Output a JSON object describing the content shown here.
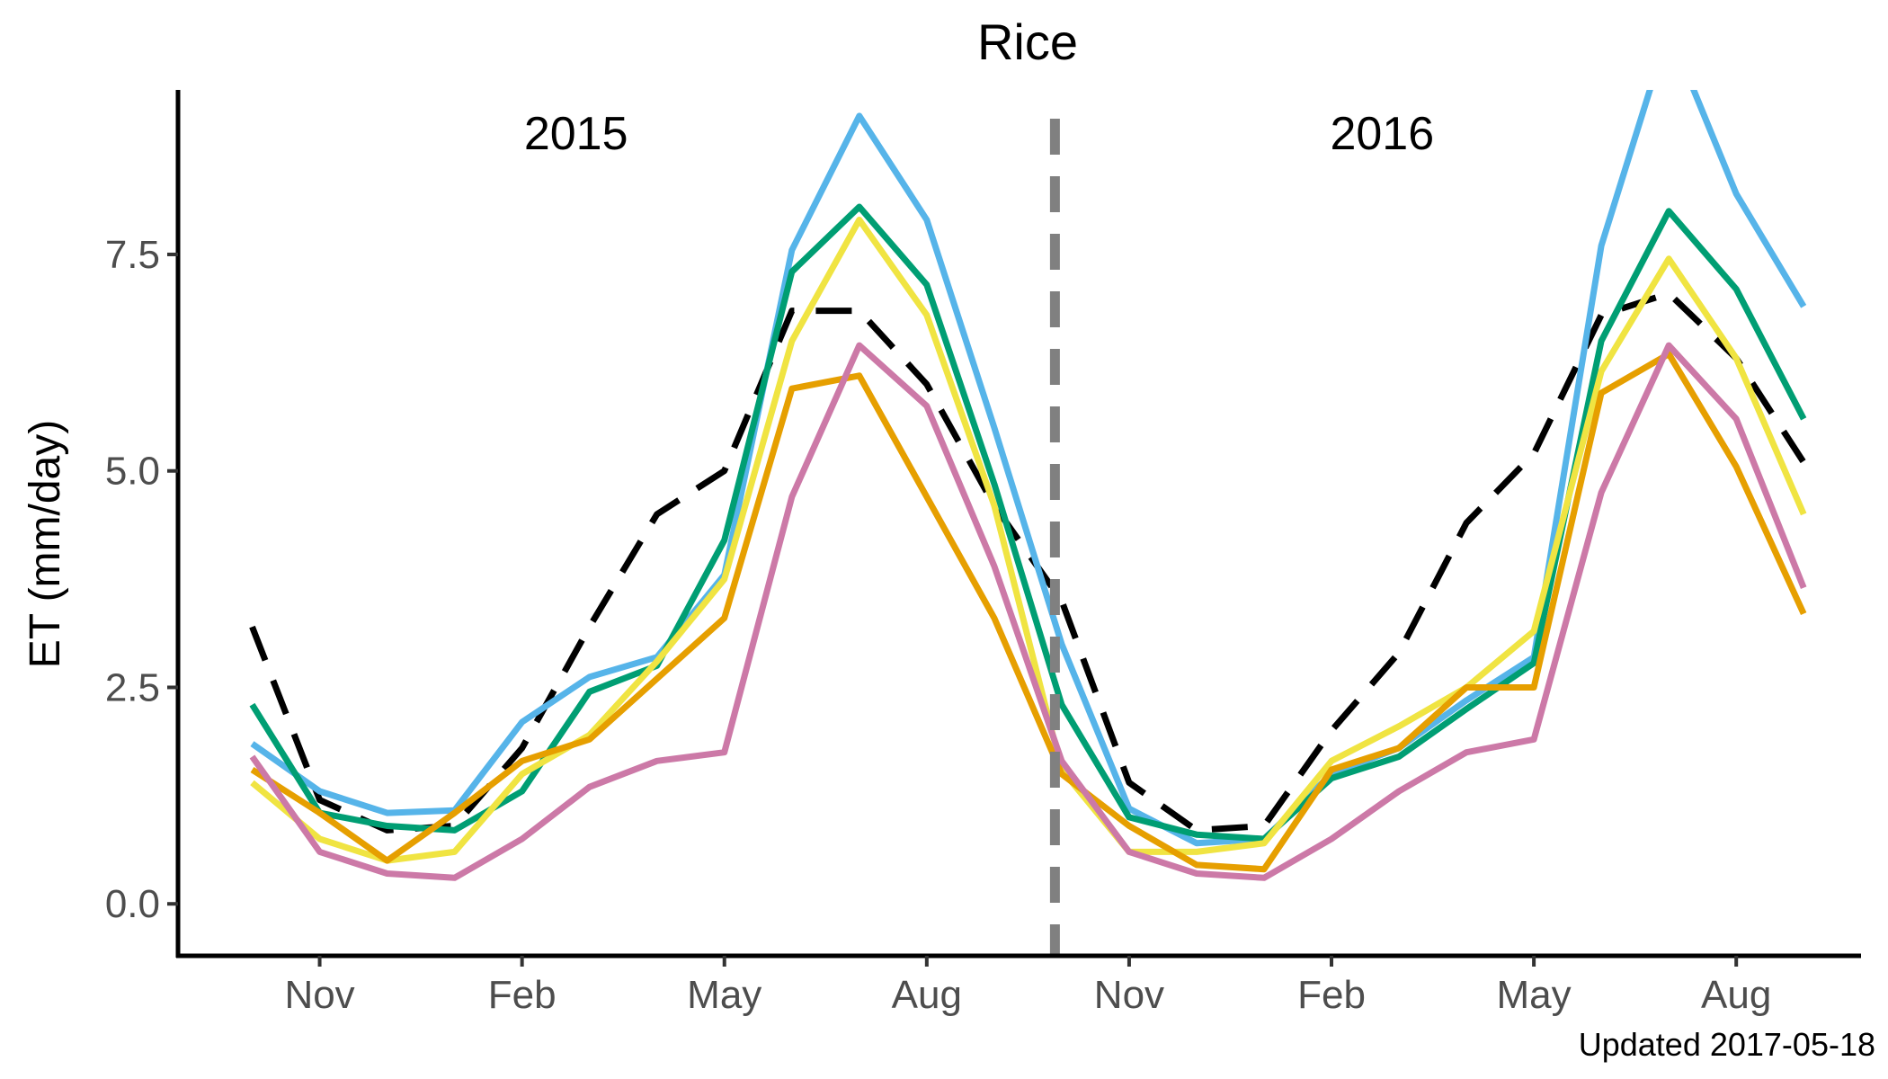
{
  "chart_data": {
    "type": "line",
    "title": "Rice",
    "xlabel": "",
    "ylabel": "ET (mm/day)",
    "ylim": [
      -0.6,
      9.4
    ],
    "yticks": [
      0.0,
      2.5,
      5.0,
      7.5
    ],
    "ytick_labels": [
      "0.0",
      "2.5",
      "5.0",
      "7.5"
    ],
    "xlim": [
      -1.1,
      23.85
    ],
    "xticks": [
      1,
      4,
      7,
      10,
      13,
      16,
      19,
      22
    ],
    "xtick_labels": [
      "Nov",
      "Feb",
      "May",
      "Aug",
      "Nov",
      "Feb",
      "May",
      "Aug"
    ],
    "x": [
      0,
      1,
      2,
      3,
      4,
      5,
      6,
      7,
      8,
      9,
      10,
      11,
      12,
      13,
      14,
      15,
      16,
      17,
      18,
      19,
      20,
      21,
      22,
      23
    ],
    "divider_x": 11.9,
    "annotations": [
      {
        "text": "2015",
        "x": 4.8,
        "y": 8.9
      },
      {
        "text": "2016",
        "x": 16.75,
        "y": 8.9
      }
    ],
    "footer": "Updated  2017-05-18",
    "grid": false,
    "legend": "none",
    "series": [
      {
        "color": "#000000",
        "dashed": true,
        "values": [
          3.2,
          1.2,
          0.85,
          0.9,
          1.8,
          3.2,
          4.5,
          5.0,
          6.85,
          6.85,
          6.0,
          4.6,
          3.5,
          1.4,
          0.85,
          0.9,
          2.0,
          2.9,
          4.4,
          5.2,
          6.8,
          7.05,
          6.3,
          5.1
        ]
      },
      {
        "color": "#56B4E9",
        "dashed": false,
        "values": [
          1.85,
          1.3,
          1.05,
          1.08,
          2.1,
          2.62,
          2.85,
          3.8,
          7.55,
          9.1,
          7.9,
          5.5,
          3.0,
          1.1,
          0.7,
          0.75,
          1.5,
          1.8,
          2.35,
          2.85,
          7.6,
          10.1,
          8.2,
          6.9
        ]
      },
      {
        "color": "#009E73",
        "dashed": false,
        "values": [
          2.3,
          1.05,
          0.9,
          0.85,
          1.3,
          2.45,
          2.75,
          4.2,
          7.3,
          8.05,
          7.15,
          4.85,
          2.3,
          1.0,
          0.8,
          0.75,
          1.45,
          1.7,
          2.25,
          2.78,
          6.5,
          8.0,
          7.1,
          5.6
        ]
      },
      {
        "color": "#F0E442",
        "dashed": false,
        "values": [
          1.4,
          0.75,
          0.5,
          0.6,
          1.5,
          1.95,
          2.8,
          3.75,
          6.5,
          7.9,
          6.8,
          4.6,
          1.55,
          0.6,
          0.6,
          0.7,
          1.65,
          2.05,
          2.5,
          3.15,
          6.15,
          7.45,
          6.3,
          4.5
        ]
      },
      {
        "color": "#E69F00",
        "dashed": false,
        "values": [
          1.55,
          1.05,
          0.5,
          1.05,
          1.65,
          1.9,
          2.6,
          3.3,
          5.95,
          6.1,
          4.7,
          3.3,
          1.5,
          0.9,
          0.45,
          0.4,
          1.55,
          1.8,
          2.5,
          2.5,
          5.9,
          6.35,
          5.05,
          3.35
        ]
      },
      {
        "color": "#CC79A7",
        "dashed": false,
        "values": [
          1.7,
          0.6,
          0.35,
          0.3,
          0.75,
          1.35,
          1.65,
          1.75,
          4.7,
          6.45,
          5.75,
          3.9,
          1.65,
          0.6,
          0.35,
          0.3,
          0.75,
          1.3,
          1.75,
          1.9,
          4.75,
          6.45,
          5.6,
          3.65
        ]
      }
    ]
  }
}
